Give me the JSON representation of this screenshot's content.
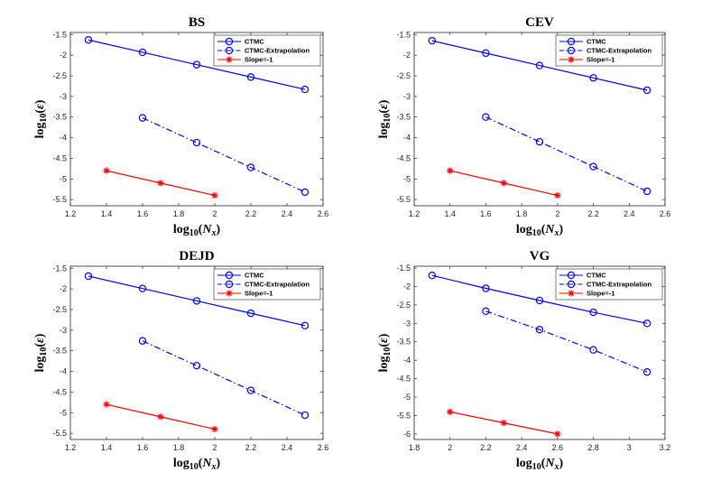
{
  "chart_data": [
    {
      "type": "line",
      "title": "BS",
      "xlabel": "log10(Nx)",
      "ylabel": "log10(ε)",
      "xlim": [
        1.2,
        2.6
      ],
      "ylim": [
        -5.65,
        -1.45
      ],
      "xticks": [
        1.2,
        1.4,
        1.6,
        1.8,
        2.0,
        2.2,
        2.4,
        2.6
      ],
      "xtick_labels": [
        "1.2",
        "1.4",
        "1.6",
        "1.8",
        "2",
        "2.2",
        "2.4",
        "2.6"
      ],
      "yticks": [
        -1.5,
        -2,
        -2.5,
        -3,
        -3.5,
        -4,
        -4.5,
        -5,
        -5.5
      ],
      "ytick_labels": [
        "-1.5",
        "-2",
        "-2.5",
        "-3",
        "-3.5",
        "-4",
        "-4.5",
        "-5",
        "-5.5"
      ],
      "legend": "top-right",
      "series": [
        {
          "name": "CTMC",
          "style": "solid-circle",
          "color": "#0000ff",
          "x": [
            1.3,
            1.6,
            1.9,
            2.2,
            2.5
          ],
          "y": [
            -1.63,
            -1.93,
            -2.23,
            -2.53,
            -2.83
          ]
        },
        {
          "name": "CTMC-Extrapolation",
          "style": "dashdot-circle",
          "color": "#0000ff",
          "x": [
            1.6,
            1.9,
            2.2,
            2.5
          ],
          "y": [
            -3.52,
            -4.12,
            -4.72,
            -5.32
          ]
        },
        {
          "name": "Slope=-1",
          "style": "solid-star",
          "color": "#ff0000",
          "x": [
            1.4,
            1.7,
            2.0
          ],
          "y": [
            -4.8,
            -5.1,
            -5.4
          ]
        }
      ]
    },
    {
      "type": "line",
      "title": "CEV",
      "xlabel": "log10(Nx)",
      "ylabel": "log10(ε)",
      "xlim": [
        1.2,
        2.6
      ],
      "ylim": [
        -5.65,
        -1.45
      ],
      "xticks": [
        1.2,
        1.4,
        1.6,
        1.8,
        2.0,
        2.2,
        2.4,
        2.6
      ],
      "xtick_labels": [
        "1.2",
        "1.4",
        "1.6",
        "1.8",
        "2",
        "2.2",
        "2.4",
        "2.6"
      ],
      "yticks": [
        -1.5,
        -2,
        -2.5,
        -3,
        -3.5,
        -4,
        -4.5,
        -5,
        -5.5
      ],
      "ytick_labels": [
        "-1.5",
        "-2",
        "-2.5",
        "-3",
        "-3.5",
        "-4",
        "-4.5",
        "-5",
        "-5.5"
      ],
      "legend": "top-right",
      "series": [
        {
          "name": "CTMC",
          "style": "solid-circle",
          "color": "#0000ff",
          "x": [
            1.3,
            1.6,
            1.9,
            2.2,
            2.5
          ],
          "y": [
            -1.65,
            -1.95,
            -2.25,
            -2.55,
            -2.85
          ]
        },
        {
          "name": "CTMC-Extrapolation",
          "style": "dashdot-circle",
          "color": "#0000ff",
          "x": [
            1.6,
            1.9,
            2.2,
            2.5
          ],
          "y": [
            -3.5,
            -4.1,
            -4.7,
            -5.3
          ]
        },
        {
          "name": "Slope=-1",
          "style": "solid-star",
          "color": "#ff0000",
          "x": [
            1.4,
            1.7,
            2.0
          ],
          "y": [
            -4.8,
            -5.1,
            -5.4
          ]
        }
      ]
    },
    {
      "type": "line",
      "title": "DEJD",
      "xlabel": "log10(Nx)",
      "ylabel": "log10(ε)",
      "xlim": [
        1.2,
        2.6
      ],
      "ylim": [
        -5.65,
        -1.45
      ],
      "xticks": [
        1.2,
        1.4,
        1.6,
        1.8,
        2.0,
        2.2,
        2.4,
        2.6
      ],
      "xtick_labels": [
        "1.2",
        "1.4",
        "1.6",
        "1.8",
        "2",
        "2.2",
        "2.4",
        "2.6"
      ],
      "yticks": [
        -1.5,
        -2,
        -2.5,
        -3,
        -3.5,
        -4,
        -4.5,
        -5,
        -5.5
      ],
      "ytick_labels": [
        "-1.5",
        "-2",
        "-2.5",
        "-3",
        "-3.5",
        "-4",
        "-4.5",
        "-5",
        "-5.5"
      ],
      "legend": "top-right",
      "series": [
        {
          "name": "CTMC",
          "style": "solid-circle",
          "color": "#0000ff",
          "x": [
            1.3,
            1.6,
            1.9,
            2.2,
            2.5
          ],
          "y": [
            -1.69,
            -1.99,
            -2.29,
            -2.59,
            -2.89
          ]
        },
        {
          "name": "CTMC-Extrapolation",
          "style": "dashdot-circle",
          "color": "#0000ff",
          "x": [
            1.6,
            1.9,
            2.2,
            2.5
          ],
          "y": [
            -3.26,
            -3.86,
            -4.46,
            -5.06
          ]
        },
        {
          "name": "Slope=-1",
          "style": "solid-star",
          "color": "#ff0000",
          "x": [
            1.4,
            1.7,
            2.0
          ],
          "y": [
            -4.8,
            -5.1,
            -5.4
          ]
        }
      ]
    },
    {
      "type": "line",
      "title": "VG",
      "xlabel": "log10(Nx)",
      "ylabel": "log10(ε)",
      "xlim": [
        1.8,
        3.2
      ],
      "ylim": [
        -6.15,
        -1.45
      ],
      "xticks": [
        1.8,
        2.0,
        2.2,
        2.4,
        2.6,
        2.8,
        3.0,
        3.2
      ],
      "xtick_labels": [
        "1.8",
        "2",
        "2.2",
        "2.4",
        "2.6",
        "2.8",
        "3",
        "3.2"
      ],
      "yticks": [
        -1.5,
        -2,
        -2.5,
        -3,
        -3.5,
        -4,
        -4.5,
        -5,
        -5.5,
        -6
      ],
      "ytick_labels": [
        "-1.5",
        "-2",
        "-2.5",
        "-3",
        "-3.5",
        "-4",
        "-4.5",
        "-5",
        "-5.5",
        "-6"
      ],
      "legend": "top-right",
      "series": [
        {
          "name": "CTMC",
          "style": "solid-circle",
          "color": "#0000ff",
          "x": [
            1.9,
            2.2,
            2.5,
            2.8,
            3.1
          ],
          "y": [
            -1.7,
            -2.05,
            -2.38,
            -2.7,
            -3.0
          ]
        },
        {
          "name": "CTMC-Extrapolation",
          "style": "dashdot-circle",
          "color": "#0000ff",
          "x": [
            2.2,
            2.5,
            2.8,
            3.1
          ],
          "y": [
            -2.67,
            -3.17,
            -3.72,
            -4.32
          ]
        },
        {
          "name": "Slope=-1",
          "style": "solid-star",
          "color": "#ff0000",
          "x": [
            2.0,
            2.3,
            2.6
          ],
          "y": [
            -5.4,
            -5.7,
            -6.0
          ]
        }
      ]
    }
  ]
}
